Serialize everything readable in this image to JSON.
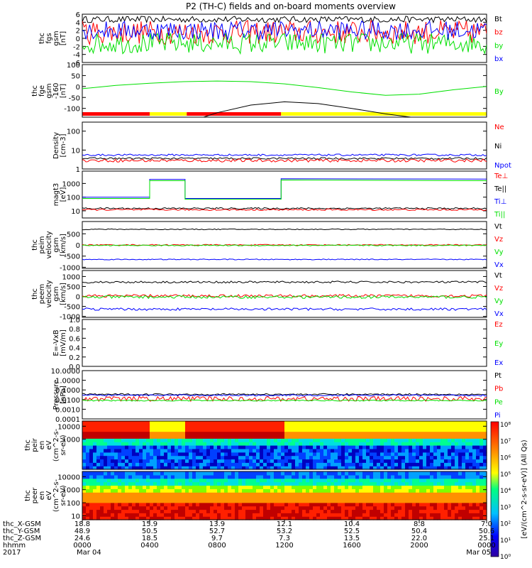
{
  "chart_data": {
    "type": "line",
    "title": "P2 (TH-C) fields and on-board moments overview",
    "colors": {
      "black": "#000000",
      "red": "#ff0000",
      "green": "#00e000",
      "blue": "#0000ff",
      "yellow": "#ffff00"
    },
    "panels": [
      {
        "id": "fgs",
        "ylabel": [
          "thc",
          "fgs",
          "gsm",
          "[nT]"
        ],
        "yrange": [
          -6,
          6
        ],
        "yticks": [
          "6",
          "4",
          "2",
          "0",
          "-2",
          "-4",
          "-6"
        ],
        "legend": [
          {
            "label": "Bt",
            "color": "black"
          },
          {
            "label": "bz",
            "color": "red"
          },
          {
            "label": "by",
            "color": "green"
          },
          {
            "label": "bx",
            "color": "blue"
          }
        ],
        "series": [
          {
            "name": "Bt",
            "color": "black",
            "level": 4.7,
            "noise": 0.8
          },
          {
            "name": "bz",
            "color": "red",
            "level": 1.5,
            "noise": 3.0
          },
          {
            "name": "by",
            "color": "green",
            "level": -1.2,
            "noise": 2.6
          },
          {
            "name": "bx",
            "color": "blue",
            "level": 2.0,
            "noise": 2.4
          }
        ]
      },
      {
        "id": "fge",
        "ylabel": [
          "thc",
          "fge",
          "gsm",
          "-160",
          "[nT]"
        ],
        "yrange": [
          -140,
          100
        ],
        "yticks": [
          "100",
          "50",
          "0",
          "-50",
          "-100"
        ],
        "legend": [
          {
            "label": "By",
            "color": "green"
          }
        ],
        "series": [
          {
            "name": "By",
            "color": "green",
            "x": [
              0,
              2,
              4,
              6,
              8,
              10,
              12,
              14,
              16,
              18,
              20,
              22,
              24
            ],
            "y": [
              -10,
              5,
              15,
              22,
              25,
              22,
              12,
              -5,
              -25,
              -40,
              -35,
              -15,
              0
            ]
          },
          {
            "name": "",
            "color": "black",
            "x": [
              7.2,
              8,
              10,
              12,
              14,
              16,
              18,
              19.5
            ],
            "y": [
              -140,
              -120,
              -85,
              -70,
              -78,
              -100,
              -125,
              -140
            ]
          }
        ],
        "bar": [
          {
            "from": 0,
            "to": 4,
            "color": "red"
          },
          {
            "from": 4,
            "to": 6.2,
            "color": "yellow"
          },
          {
            "from": 6.2,
            "to": 11.8,
            "color": "red"
          },
          {
            "from": 11.8,
            "to": 24,
            "color": "yellow"
          }
        ]
      },
      {
        "id": "density",
        "ylabel": [
          "Density",
          "[cm-3]"
        ],
        "log": true,
        "yrange": [
          1,
          300
        ],
        "yticks": [
          "100",
          "10",
          "1"
        ],
        "legend": [
          {
            "label": "Ne",
            "color": "red"
          },
          {
            "label": "Ni",
            "color": "black"
          },
          {
            "label": "Npot",
            "color": "blue"
          }
        ],
        "series": [
          {
            "name": "Npot",
            "color": "blue",
            "level": 5.5,
            "noise": 0.05
          },
          {
            "name": "Ni",
            "color": "black",
            "level": 3.6,
            "noise": 0.05
          },
          {
            "name": "Ne",
            "color": "red",
            "level": 2.8,
            "noise": 0.08
          }
        ]
      },
      {
        "id": "temp",
        "ylabel": [
          "magt3",
          "[eV]"
        ],
        "log": true,
        "yrange": [
          3,
          8000
        ],
        "yticks": [
          "1000",
          "100",
          "10"
        ],
        "legend": [
          {
            "label": "Te⊥",
            "color": "red"
          },
          {
            "label": "Te||",
            "color": "black"
          },
          {
            "label": "Ti⊥",
            "color": "blue"
          },
          {
            "label": "Ti||",
            "color": "green"
          }
        ],
        "series": [
          {
            "name": "Ti⊥",
            "color": "blue",
            "x": [
              0,
              4,
              4,
              6.1,
              6.1,
              11.8,
              11.8,
              24
            ],
            "y": [
              100,
              100,
              2000,
              2000,
              80,
              80,
              2200,
              2100
            ]
          },
          {
            "name": "Ti||",
            "color": "green",
            "x": [
              0,
              4,
              4,
              6.1,
              6.1,
              11.8,
              11.8,
              24
            ],
            "y": [
              80,
              80,
              1600,
              1600,
              70,
              70,
              1800,
              1600
            ]
          },
          {
            "name": "Te||",
            "color": "black",
            "level": 15,
            "noise": 0.06
          },
          {
            "name": "Te⊥",
            "color": "red",
            "level": 12,
            "noise": 0.06
          }
        ]
      },
      {
        "id": "peim",
        "ylabel": [
          "thc",
          "peim",
          "velocity",
          "gsm",
          "[km/s]"
        ],
        "yrange": [
          -1050,
          1050
        ],
        "yticks": [
          "500",
          "0",
          "-500",
          "-1000"
        ],
        "legend": [
          {
            "label": "Vt",
            "color": "black"
          },
          {
            "label": "Vz",
            "color": "red"
          },
          {
            "label": "Vy",
            "color": "green"
          },
          {
            "label": "Vx",
            "color": "blue"
          }
        ],
        "series": [
          {
            "name": "Vt",
            "color": "black",
            "level": 700,
            "noise": 20
          },
          {
            "name": "Vz",
            "color": "red",
            "level": 0,
            "noise": 25
          },
          {
            "name": "Vy",
            "color": "green",
            "level": -20,
            "noise": 25
          },
          {
            "name": "Vx",
            "color": "blue",
            "level": -650,
            "noise": 20
          }
        ]
      },
      {
        "id": "peem",
        "ylabel": [
          "thc",
          "peem",
          "velocity",
          "gsm",
          "[km/s]"
        ],
        "yrange": [
          -1050,
          1300
        ],
        "yticks": [
          "1000",
          "500",
          "0",
          "-500",
          "-1000"
        ],
        "legend": [
          {
            "label": "Vt",
            "color": "black"
          },
          {
            "label": "Vz",
            "color": "red"
          },
          {
            "label": "Vy",
            "color": "green"
          },
          {
            "label": "Vx",
            "color": "blue"
          }
        ],
        "series": [
          {
            "name": "Vt",
            "color": "black",
            "level": 720,
            "noise": 50
          },
          {
            "name": "Vz",
            "color": "red",
            "level": 30,
            "noise": 70
          },
          {
            "name": "Vy",
            "color": "green",
            "level": -30,
            "noise": 70
          },
          {
            "name": "Vx",
            "color": "blue",
            "level": -640,
            "noise": 60
          }
        ]
      },
      {
        "id": "efield",
        "ylabel": [
          "E=-VxB",
          "[mV/m]"
        ],
        "yrange": [
          0,
          1
        ],
        "yticks": [
          "1.0",
          "0.8",
          "0.6",
          "0.4",
          "0.2",
          "0.0"
        ],
        "legend": [
          {
            "label": "Ez",
            "color": "red"
          },
          {
            "label": "Ey",
            "color": "green"
          },
          {
            "label": "Ex",
            "color": "blue"
          }
        ],
        "series": []
      },
      {
        "id": "pressure",
        "ylabel": [
          "Pressure",
          "[nPa]"
        ],
        "log": true,
        "yrange": [
          0.0001,
          10
        ],
        "yticks": [
          "10.0000",
          "1.0000",
          "0.1000",
          "0.0100",
          "0.0010",
          "0.0001"
        ],
        "legend": [
          {
            "label": "Pt",
            "color": "black"
          },
          {
            "label": "Pb",
            "color": "red"
          },
          {
            "label": "Pe",
            "color": "green"
          },
          {
            "label": "Pi",
            "color": "blue"
          }
        ],
        "series": [
          {
            "name": "Pt",
            "color": "black",
            "level": 0.035,
            "noise": 0.08
          },
          {
            "name": "Pi",
            "color": "blue",
            "level": 0.028,
            "noise": 0.08
          },
          {
            "name": "Pb",
            "color": "red",
            "level": 0.012,
            "noise": 0.25
          },
          {
            "name": "Pe",
            "color": "green",
            "level": 0.008,
            "noise": 0.06
          }
        ]
      },
      {
        "id": "peir",
        "ylabel": [
          "thc",
          "peir",
          "en",
          "eV",
          "(cm^2-s-",
          "sr-eV)"
        ],
        "spectro": true,
        "log": true,
        "yrange": [
          5,
          25000
        ],
        "yticks": [
          "10000",
          "1000"
        ]
      },
      {
        "id": "peer",
        "ylabel": [
          "thc",
          "peer",
          "en",
          "eV",
          "(cm^2-s-",
          "sr-eV)"
        ],
        "spectro": true,
        "log": true,
        "yrange": [
          5,
          25000
        ],
        "yticks": [
          "10000",
          "1000",
          "100",
          "10"
        ]
      }
    ],
    "colorbar": {
      "label": "[eV/(cm^2-s-sr-eV)] (All Qs)",
      "ticks": [
        "10⁸",
        "10⁷",
        "10⁶",
        "10⁵",
        "10⁴",
        "10³",
        "10²",
        "10¹",
        "10⁰"
      ]
    },
    "xaxis": {
      "range": [
        0,
        24
      ],
      "row_labels": [
        "thc_X-GSM",
        "thc_Y-GSM",
        "thc_Z-GSM",
        "hhmm",
        "2017"
      ],
      "columns": [
        {
          "t": 0,
          "values": [
            "18.8",
            "48.9",
            "24.6",
            "0000",
            "Mar 04"
          ]
        },
        {
          "t": 4,
          "values": [
            "15.9",
            "50.5",
            "18.5",
            "0400",
            ""
          ]
        },
        {
          "t": 8,
          "values": [
            "13.9",
            "52.7",
            "9.7",
            "0800",
            ""
          ]
        },
        {
          "t": 12,
          "values": [
            "12.1",
            "53.2",
            "7.3",
            "1200",
            ""
          ]
        },
        {
          "t": 16,
          "values": [
            "10.4",
            "52.5",
            "13.5",
            "1600",
            ""
          ]
        },
        {
          "t": 20,
          "values": [
            "8.8",
            "50.4",
            "22.0",
            "2000",
            ""
          ]
        },
        {
          "t": 24,
          "values": [
            "7.0",
            "50.6",
            "25.1",
            "0000",
            "Mar 05"
          ]
        }
      ]
    }
  }
}
